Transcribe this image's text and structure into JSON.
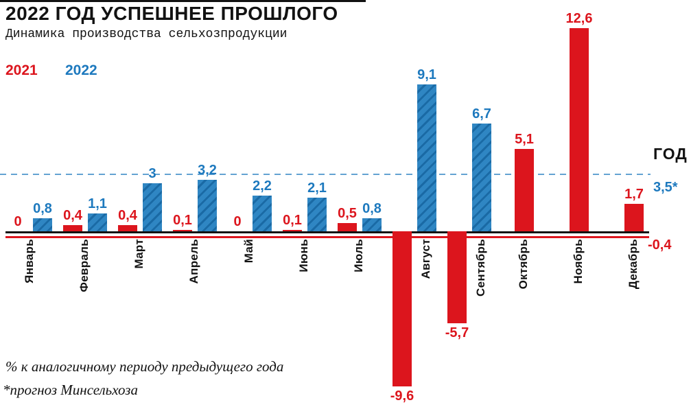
{
  "header": {
    "title": "2022 ГОД УСПЕШНЕЕ ПРОШЛОГО",
    "subtitle": "Динамика производства сельхозпродукции"
  },
  "legend": {
    "year2021": "2021",
    "year2022": "2022"
  },
  "colors": {
    "red": "#dc151d",
    "blue": "#2f86c3",
    "blue_dark": "#1a6aa5",
    "blue_label": "#1d79be",
    "dashed": "#63a2d2",
    "axis_black": "#121212"
  },
  "chart_data": {
    "type": "bar",
    "title": "2022 ГОД УСПЕШНЕЕ ПРОШЛОГО",
    "subtitle": "Динамика производства сельхозпродукции",
    "unit": "%",
    "categories": [
      "Январь",
      "Февраль",
      "Март",
      "Апрель",
      "Май",
      "Июнь",
      "Июль",
      "Август",
      "Сентябрь",
      "Октябрь",
      "Ноябрь",
      "Декабрь"
    ],
    "series": [
      {
        "name": "2021",
        "color_key": "red",
        "values": [
          0,
          0.4,
          0.4,
          0.1,
          0,
          0.1,
          0.5,
          -9.6,
          -5.7,
          5.1,
          12.6,
          1.7
        ]
      },
      {
        "name": "2022",
        "color_key": "blue",
        "values": [
          0.8,
          1.1,
          3,
          3.2,
          2.2,
          2.1,
          0.8,
          9.1,
          6.7,
          null,
          null,
          null
        ]
      }
    ],
    "ylim": [
      -9.6,
      12.6
    ],
    "reference_line": {
      "value": 3.5,
      "label": "3,5*"
    },
    "year_column": {
      "header": "ГОД",
      "value_2022_label": "3,5*",
      "value_2021_label": "-0,4"
    }
  },
  "footnotes": {
    "line1": "% к аналогичному периоду предыдущего года",
    "line2": "*прогноз Минсельхоза"
  }
}
